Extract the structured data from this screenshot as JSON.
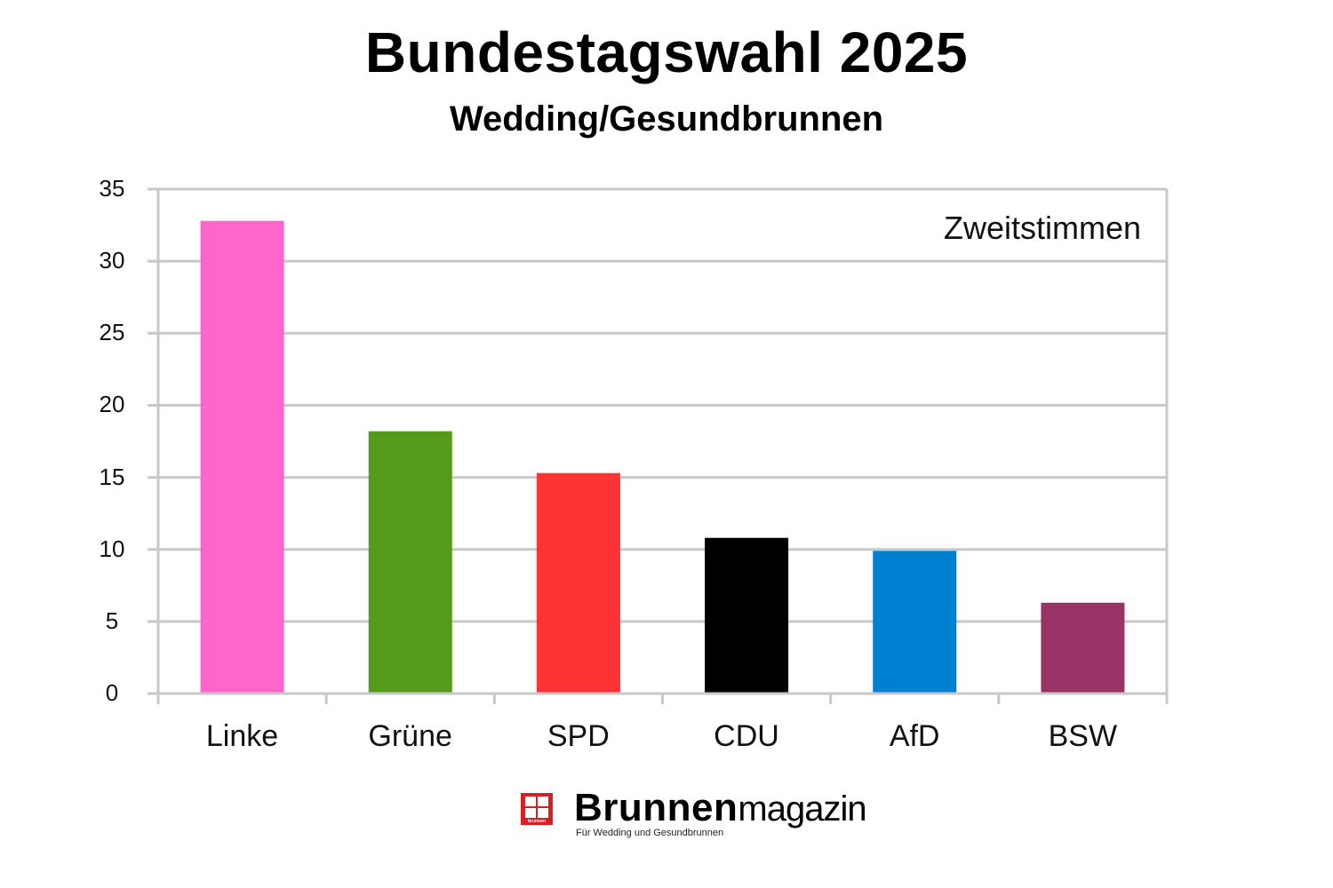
{
  "header": {
    "title": "Bundestagswahl 2025",
    "subtitle": "Wedding/Gesundbrunnen"
  },
  "annotation": "Zweitstimmen",
  "logo": {
    "brand_bold": "Brunnen",
    "brand_light": "magazin",
    "tagline": "Für Wedding und Gesundbrunnen",
    "box_label": "brunnen",
    "color": "#d71f26"
  },
  "chart_data": {
    "type": "bar",
    "title": "Bundestagswahl 2025",
    "subtitle": "Wedding/Gesundbrunnen",
    "annotation": "Zweitstimmen",
    "xlabel": "",
    "ylabel": "",
    "categories": [
      "Linke",
      "Grüne",
      "SPD",
      "CDU",
      "AfD",
      "BSW"
    ],
    "values": [
      32.8,
      18.2,
      15.3,
      10.8,
      9.9,
      6.3
    ],
    "colors": [
      "#ff66cc",
      "#569a1c",
      "#ff3333",
      "#000000",
      "#0080d0",
      "#993366"
    ],
    "ylim": [
      0,
      35
    ],
    "yticks": [
      0,
      5,
      10,
      15,
      20,
      25,
      30,
      35
    ],
    "grid": true,
    "legend": false
  }
}
